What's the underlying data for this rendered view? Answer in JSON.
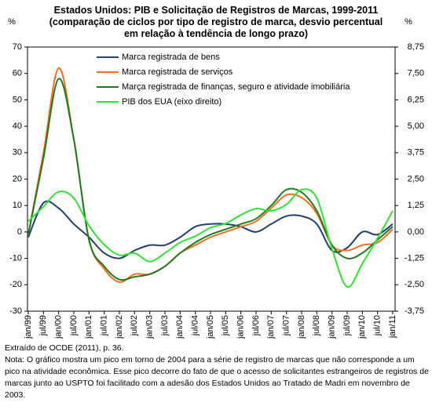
{
  "chart_data": {
    "type": "line",
    "title": "Estados Unidos: PIB e Solicitação de Registros de Marcas, 1999-2011 (comparação de ciclos por tipo de registro de marca, desvio percentual em relação à tendência de longo prazo)",
    "y_label": "%",
    "y2_label": "%",
    "categories": [
      "jan/99",
      "jul/99",
      "jan/00",
      "jul/00",
      "jan/01",
      "jul/01",
      "jan/02",
      "jul/02",
      "jan/03",
      "jul/03",
      "jan/04",
      "jul/04",
      "jan/05",
      "jul/05",
      "jan/06",
      "jul/06",
      "jan/07",
      "jul/07",
      "jan/08",
      "jul/08",
      "jan/09",
      "jul/09",
      "jan/10",
      "jul/10",
      "jan/11"
    ],
    "series": [
      {
        "name": "Marca registrada de bens",
        "color": "#1f3f6e",
        "values": [
          -2,
          11,
          9,
          3,
          -2,
          -8,
          -10,
          -7,
          -5,
          -5,
          -2,
          2,
          3,
          3,
          2,
          0,
          3,
          6,
          6,
          3,
          -7,
          -6,
          0,
          -1,
          3
        ]
      },
      {
        "name": "Marca registrada de serviços",
        "color": "#f07020",
        "values": [
          -1,
          30,
          62,
          35,
          -3,
          -14,
          -19,
          -16,
          -16,
          -13,
          -8,
          -5,
          -2,
          0,
          2,
          4,
          9,
          14,
          13,
          7,
          -5,
          -7,
          -5,
          -4,
          1
        ]
      },
      {
        "name": "Marça registrada de finanças, seguro e atividade imobiliária",
        "color": "#1f7a1f",
        "values": [
          -1,
          28,
          58,
          35,
          -3,
          -13,
          -18,
          -17,
          -16,
          -13,
          -8,
          -4,
          -1,
          1,
          3,
          5,
          10,
          16,
          15,
          8,
          -5,
          -10,
          -8,
          -3,
          2
        ]
      },
      {
        "name": "PIB dos EUA (eixo direito)",
        "color": "#33e033",
        "axis": "y2",
        "values": [
          0.5,
          1.2,
          1.9,
          1.6,
          0.3,
          -0.6,
          -1.1,
          -1.0,
          -1.4,
          -1.0,
          -0.5,
          -0.2,
          0.2,
          0.4,
          0.8,
          1.1,
          1.0,
          1.3,
          2.0,
          1.6,
          -0.8,
          -2.6,
          -1.5,
          -0.3,
          1.0
        ]
      }
    ],
    "ylim": [
      -30,
      70
    ],
    "yticks": [
      70,
      60,
      50,
      40,
      30,
      20,
      10,
      0,
      -10,
      -20,
      -30
    ],
    "y2lim": [
      -3.75,
      8.75
    ],
    "y2ticks": [
      {
        "value": 8.75,
        "label": "8,75"
      },
      {
        "value": 7.5,
        "label": "7,50"
      },
      {
        "value": 6.25,
        "label": "6,25"
      },
      {
        "value": 5,
        "label": "5,00"
      },
      {
        "value": 3.75,
        "label": "3,75"
      },
      {
        "value": 2.5,
        "label": "2,50"
      },
      {
        "value": 1.25,
        "label": "1,25"
      },
      {
        "value": 0,
        "label": "0,00"
      },
      {
        "value": -1.25,
        "label": "-1,25"
      },
      {
        "value": -2.5,
        "label": "-2,50"
      },
      {
        "value": -3.75,
        "label": "-3,75"
      }
    ],
    "legend": "top-left",
    "source": "Extraído de OCDE (2011), p. 36.",
    "note": "Nota: O gráfico mostra um pico em torno de 2004 para a série de registro de marcas que não corresponde a um pico na atividade econômica. Esse pico decorre do fato de que o acesso de solicitantes estrangeiros de registros de marcas junto ao USPTO foi facilitado com a adesão dos Estados Unidos ao Tratado de Madri em novembro de 2003."
  }
}
